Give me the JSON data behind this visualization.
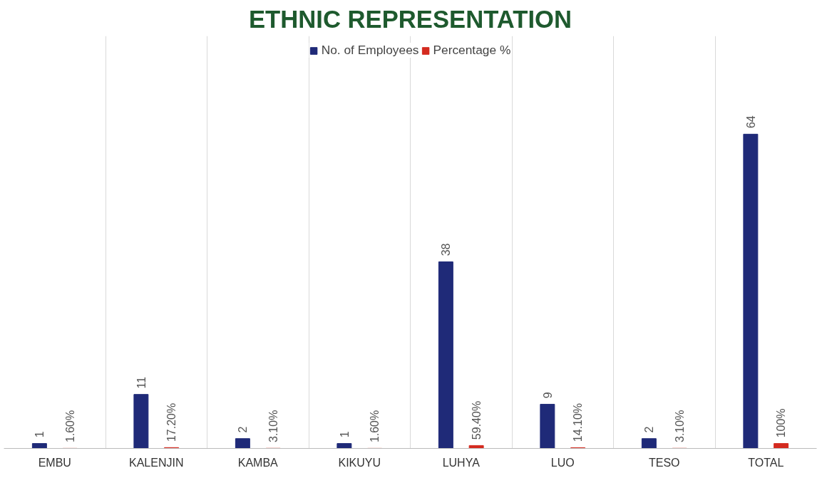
{
  "chart_data": {
    "type": "bar",
    "title": "ETHNIC REPRESENTATION",
    "categories": [
      "EMBU",
      "KALENJIN",
      "KAMBA",
      "KIKUYU",
      "LUHYA",
      "LUO",
      "TESO",
      "TOTAL"
    ],
    "series": [
      {
        "name": "No. of Employees",
        "color": "#1f2a78",
        "values": [
          1,
          11,
          2,
          1,
          38,
          9,
          2,
          64
        ],
        "value_labels": [
          "1",
          "11",
          "2",
          "1",
          "38",
          "9",
          "2",
          "64"
        ]
      },
      {
        "name": "Percentage %",
        "color": "#d42a1f",
        "values": [
          0.016,
          0.172,
          0.031,
          0.016,
          0.594,
          0.141,
          0.031,
          1
        ],
        "value_labels": [
          "1.60%",
          "17.20%",
          "3.10%",
          "1.60%",
          "59.40%",
          "14.10%",
          "3.10%",
          "100%"
        ]
      }
    ],
    "ylim": [
      0,
      84
    ],
    "tick_labels": "x",
    "grid": "x",
    "legend": "top"
  }
}
